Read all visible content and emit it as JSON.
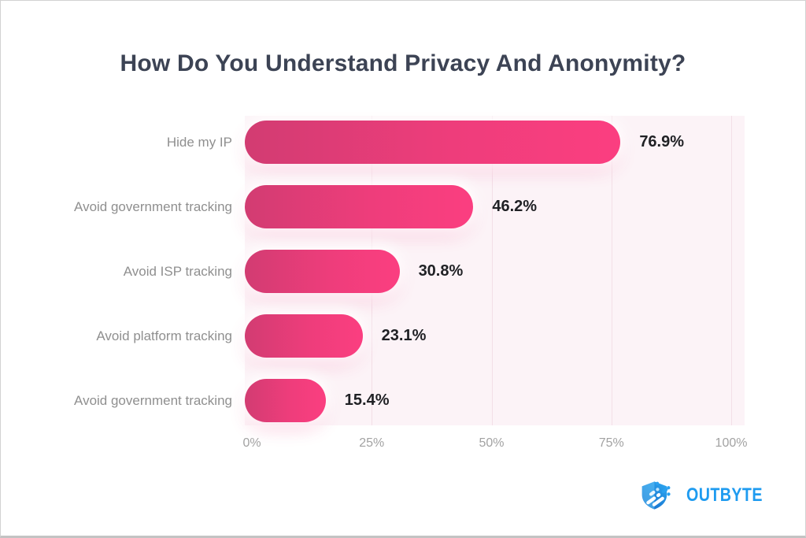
{
  "page": {
    "title": "How Do You Understand Privacy And Anonymity?"
  },
  "chart_data": {
    "type": "bar",
    "orientation": "horizontal",
    "title": "How Do You Understand Privacy And Anonymity?",
    "categories": [
      "Hide my IP",
      "Avoid government tracking",
      "Avoid ISP tracking",
      "Avoid platform tracking",
      "Avoid government tracking"
    ],
    "values": [
      76.9,
      46.2,
      30.8,
      23.1,
      15.4
    ],
    "value_labels": [
      "76.9%",
      "46.2%",
      "30.8%",
      "23.1%",
      "15.4%"
    ],
    "xlabel": "",
    "ylabel": "",
    "x_ticks": [
      "0%",
      "25%",
      "50%",
      "75%",
      "100%"
    ],
    "xlim": [
      0,
      100
    ],
    "grid": true,
    "legend": false,
    "colors": {
      "bar_gradient_start": "#d23c72",
      "bar_gradient_end": "#fb3e80",
      "plot_background": "#fcf3f7",
      "gridline": "#f3dfe7",
      "category_label": "#8f8f8f",
      "value_label": "#202125",
      "tick_label": "#a2a2a2",
      "title": "#3c4354"
    }
  },
  "branding": {
    "logo_text": "OUTBYTE",
    "logo_color": "#1e9bf0"
  }
}
